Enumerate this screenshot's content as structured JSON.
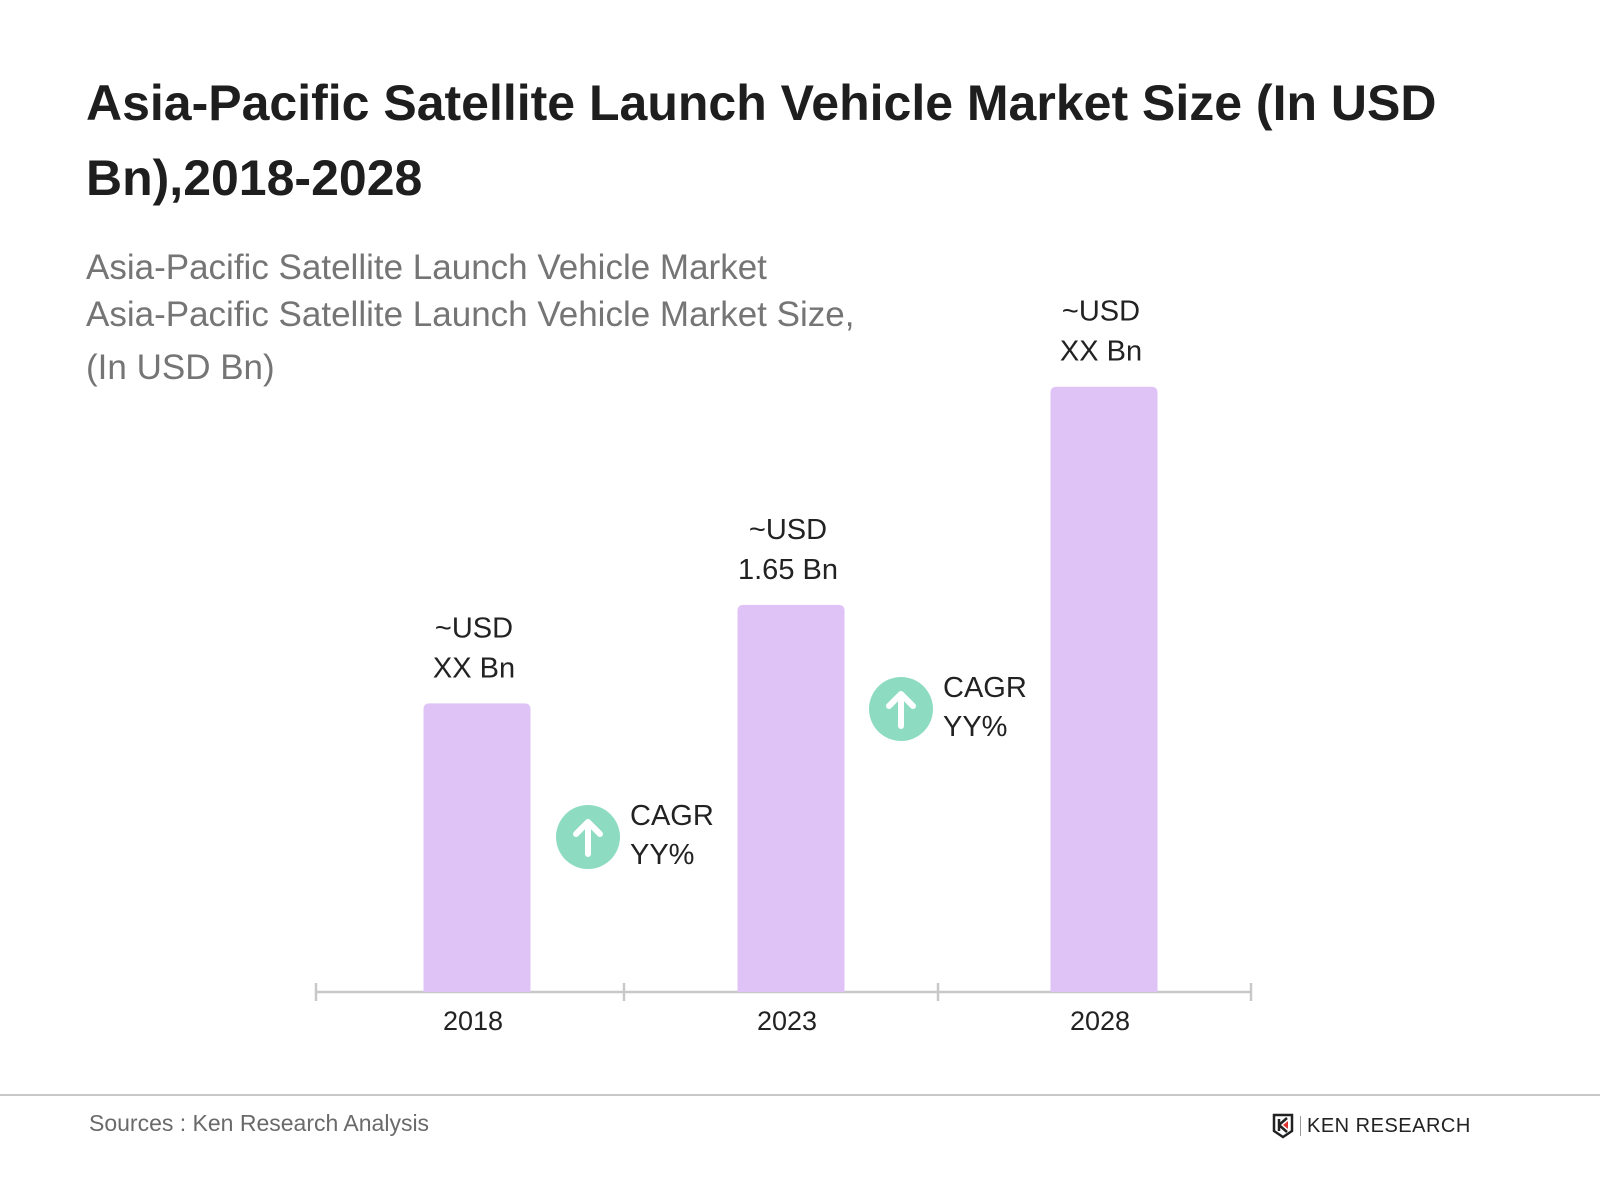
{
  "title": "Asia-Pacific Satellite Launch Vehicle Market Size (In USD Bn),2018-2028",
  "subtitle_lines": [
    "Asia-Pacific Satellite Launch Vehicle Market",
    "Asia-Pacific Satellite Launch Vehicle Market Size,",
    "(In USD Bn)"
  ],
  "chart_data": {
    "type": "bar",
    "categories": [
      "2018",
      "2023",
      "2028"
    ],
    "values": [
      1.23,
      1.65,
      2.58
    ],
    "data_labels": [
      [
        "~USD",
        "XX Bn"
      ],
      [
        "~USD",
        "1.65 Bn"
      ],
      [
        "~USD",
        "XX Bn"
      ]
    ],
    "annotations": [
      {
        "between": [
          "2018",
          "2023"
        ],
        "lines": [
          "CAGR",
          "YY%"
        ],
        "icon": "arrow-up-circle-icon"
      },
      {
        "between": [
          "2023",
          "2028"
        ],
        "lines": [
          "CAGR",
          "YY%"
        ],
        "icon": "arrow-up-circle-icon"
      }
    ],
    "grid": false,
    "yaxis_visible": false,
    "ylim": [
      0,
      2.6
    ],
    "colors": {
      "bar": "#dfc3f7",
      "cagr_icon": "#8ddcc2",
      "axis": "#c8c8c8"
    }
  },
  "footer": {
    "source": "Sources : Ken Research Analysis",
    "logo_text": "KEN RESEARCH"
  }
}
